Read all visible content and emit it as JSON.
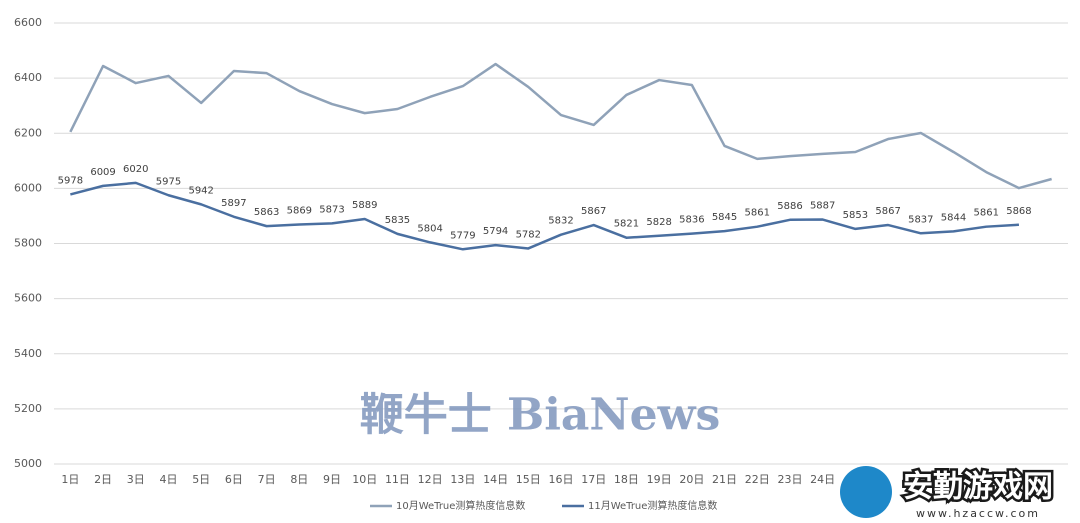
{
  "chart_data": {
    "type": "line",
    "categories": [
      "1日",
      "2日",
      "3日",
      "4日",
      "5日",
      "6日",
      "7日",
      "8日",
      "9日",
      "10日",
      "11日",
      "12日",
      "13日",
      "14日",
      "15日",
      "16日",
      "17日",
      "18日",
      "19日",
      "20日",
      "21日",
      "22日",
      "23日",
      "24日",
      null,
      null,
      null,
      null,
      null,
      null,
      null
    ],
    "series": [
      {
        "name": "10月WeTrue测算热度信息数",
        "color": "#8fa2b8",
        "values": [
          6205,
          6444,
          6382,
          6408,
          6310,
          6426,
          6418,
          6353,
          6306,
          6273,
          6288,
          6332,
          6371,
          6451,
          6368,
          6266,
          6230,
          6339,
          6393,
          6375,
          6154,
          6107,
          6117,
          6125,
          6132,
          6179,
          6201,
          6132,
          6059,
          6001,
          6034
        ]
      },
      {
        "name": "11月WeTrue测算热度信息数",
        "color": "#4a6fa0",
        "show_labels": true,
        "values": [
          5978,
          6009,
          6020,
          5975,
          5942,
          5897,
          5863,
          5869,
          5873,
          5889,
          5835,
          5804,
          5779,
          5794,
          5782,
          5832,
          5867,
          5821,
          5828,
          5836,
          5845,
          5861,
          5886,
          5887,
          5853,
          5867,
          5837,
          5844,
          5861,
          5868,
          null
        ]
      }
    ],
    "ylim": [
      5000,
      6600
    ],
    "yticks": [
      5000,
      5200,
      5400,
      5600,
      5800,
      6000,
      6200,
      6400,
      6600
    ],
    "grid": true,
    "legend": "bottom",
    "watermarks": [
      "鞭牛士 BiaNews",
      "安勤游戏网",
      "www.hzaccw.com"
    ]
  }
}
